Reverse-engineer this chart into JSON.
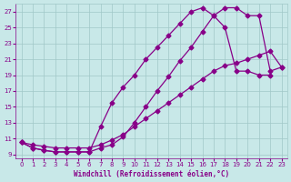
{
  "xlabel": "Windchill (Refroidissement éolien,°C)",
  "bg_color": "#c8e8e8",
  "grid_color": "#a0c8c8",
  "line_color": "#880088",
  "text_color": "#880088",
  "ylim": [
    8.5,
    28.0
  ],
  "xlim": [
    -0.5,
    23.5
  ],
  "yticks": [
    9,
    11,
    13,
    15,
    17,
    19,
    21,
    23,
    25,
    27
  ],
  "xticks": [
    0,
    1,
    2,
    3,
    4,
    5,
    6,
    7,
    8,
    9,
    10,
    11,
    12,
    13,
    14,
    15,
    16,
    17,
    18,
    19,
    20,
    21,
    22,
    23
  ],
  "line1_x": [
    0,
    1,
    2,
    3,
    4,
    5,
    6,
    7,
    8,
    9,
    10,
    11,
    12,
    13,
    14,
    15,
    16,
    17,
    18,
    19,
    20,
    21,
    22,
    23
  ],
  "line1_y": [
    10.5,
    9.8,
    9.5,
    9.3,
    9.3,
    9.3,
    9.3,
    9.8,
    10.2,
    11.2,
    13.0,
    15.0,
    17.0,
    18.8,
    20.8,
    22.5,
    24.5,
    26.5,
    27.5,
    27.5,
    26.5,
    26.5,
    19.5,
    20.0
  ],
  "line2_x": [
    0,
    1,
    2,
    3,
    4,
    5,
    6,
    7,
    8,
    9,
    10,
    11,
    12,
    13,
    14,
    15,
    16,
    17,
    18,
    19,
    20,
    21,
    22
  ],
  "line2_y": [
    10.5,
    9.8,
    9.5,
    9.3,
    9.3,
    9.3,
    9.3,
    12.5,
    15.5,
    17.5,
    19.0,
    21.0,
    22.5,
    24.0,
    25.5,
    27.0,
    27.5,
    26.5,
    25.0,
    19.5,
    19.5,
    19.0,
    19.0
  ],
  "line3_x": [
    0,
    1,
    2,
    3,
    4,
    5,
    6,
    7,
    8,
    9,
    10,
    11,
    12,
    13,
    14,
    15,
    16,
    17,
    18,
    19,
    20,
    21,
    22,
    23
  ],
  "line3_y": [
    10.5,
    10.2,
    10.0,
    9.8,
    9.8,
    9.8,
    9.8,
    10.2,
    10.8,
    11.5,
    12.5,
    13.5,
    14.5,
    15.5,
    16.5,
    17.5,
    18.5,
    19.5,
    20.2,
    20.5,
    21.0,
    21.5,
    22.0,
    20.0
  ]
}
